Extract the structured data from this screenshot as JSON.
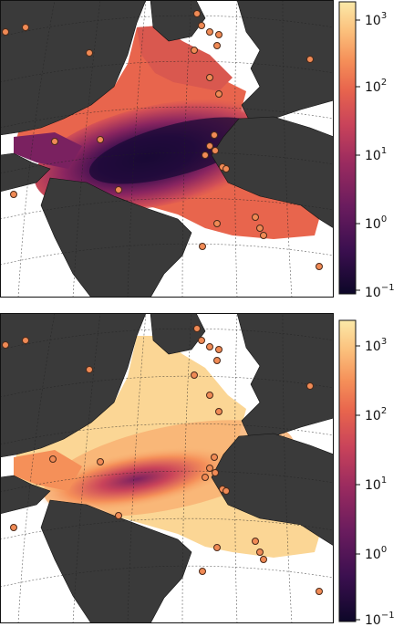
{
  "colors": {
    "land": "#3a3a3a",
    "ocean_background": "#ffffff",
    "graticule": "#222222",
    "marker_fill": "#f08a55",
    "marker_edge": "#4a2a1a",
    "colormap": [
      "#0d0728",
      "#3b0f4f",
      "#6a1c5e",
      "#9b2b5f",
      "#c9435a",
      "#e8654d",
      "#f59059",
      "#fbc07c",
      "#fbe9a8"
    ]
  },
  "colorbar": {
    "scale": "log",
    "ticks": [
      {
        "base": "10",
        "exp": "3"
      },
      {
        "base": "10",
        "exp": "2"
      },
      {
        "base": "10",
        "exp": "1"
      },
      {
        "base": "10",
        "exp": "0"
      },
      {
        "base": "10",
        "exp": "−1"
      }
    ]
  },
  "panels": [
    {
      "id": "top",
      "field_pattern": "mostly orange field with low-value dark trough across mid Atlantic",
      "colorbar_ticks": [
        "10^3",
        "10^2",
        "10^1",
        "10^0",
        "10^-1"
      ]
    },
    {
      "id": "bottom",
      "field_pattern": "mostly pale yellow field with reddish band across Caribbean to West Africa",
      "colorbar_ticks": [
        "10^3",
        "10^2",
        "10^1",
        "10^0",
        "10^-1"
      ]
    }
  ]
}
